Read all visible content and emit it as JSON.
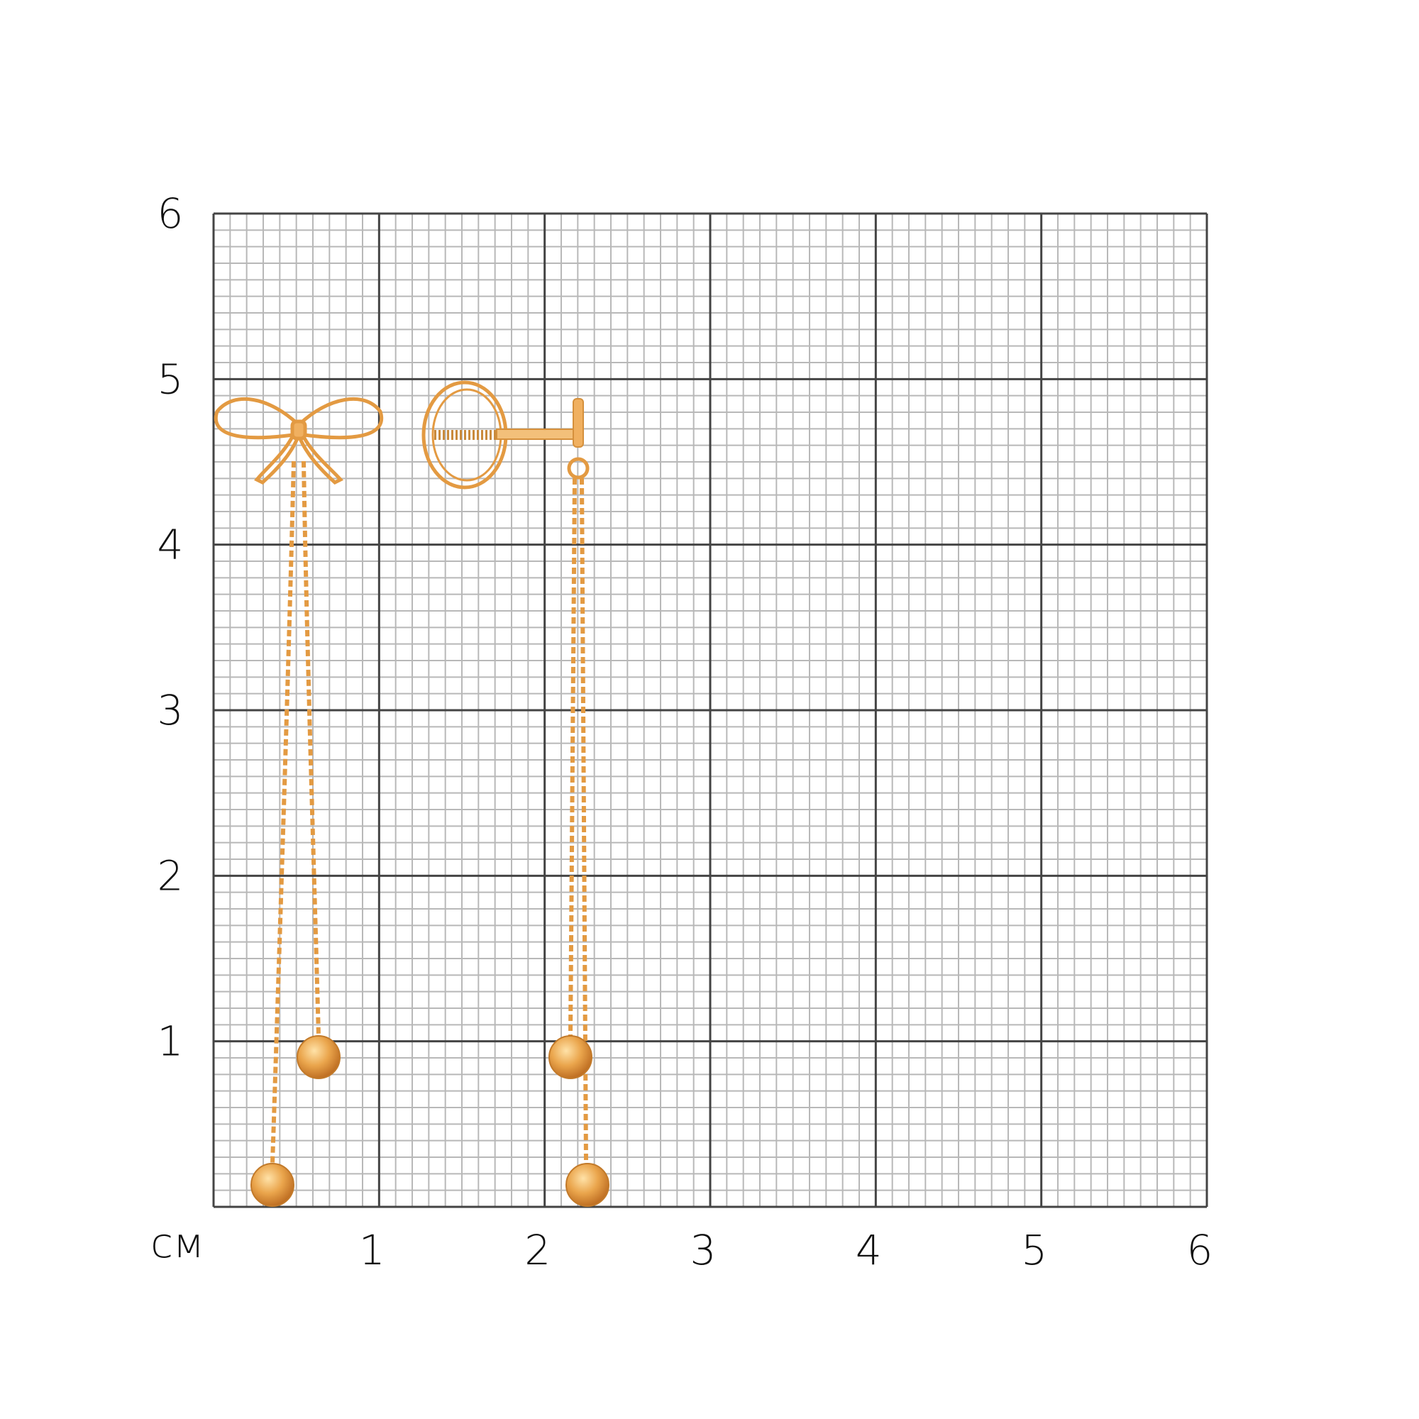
{
  "scale": {
    "unit_label": "см",
    "x_ticks": [
      "1",
      "2",
      "3",
      "4",
      "5",
      "6"
    ],
    "y_ticks": [
      "1",
      "2",
      "3",
      "4",
      "5",
      "6"
    ],
    "range_cm": [
      0,
      6
    ],
    "minor_divisions_per_cm": 10
  },
  "colors": {
    "grid_major": "#444444",
    "grid_minor": "#b8b8b8",
    "gold": "#e9a54e",
    "gold_dark": "#b86a1e"
  },
  "product": {
    "items": [
      "bow-earring-front",
      "earring-side-view-with-screw-back"
    ]
  }
}
